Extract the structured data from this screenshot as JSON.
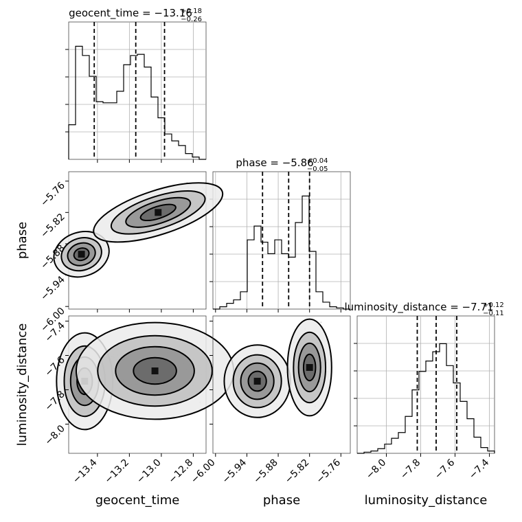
{
  "chart_data": {
    "type": "corner",
    "parameters": [
      "geocent_time",
      "phase",
      "luminosity_distance"
    ],
    "titles": [
      {
        "param": "geocent_time",
        "text": "geocent_time = −13.16",
        "plus": "+0.18",
        "minus": "−0.26"
      },
      {
        "param": "phase",
        "text": "phase = −5.86",
        "plus": "+0.04",
        "minus": "−0.05"
      },
      {
        "param": "luminosity_distance",
        "text": "luminosity_distance = −7.71",
        "plus": "+0.12",
        "minus": "−0.11"
      }
    ],
    "axes": {
      "geocent_time": {
        "range": [
          -13.58,
          -12.72
        ],
        "ticks": [
          -13.4,
          -13.2,
          -13.0,
          -12.8
        ],
        "tick_labels": [
          "−13.4",
          "−13.2",
          "−13.0",
          "−12.8"
        ]
      },
      "phase": {
        "range": [
          -6.005,
          -5.742
        ],
        "ticks": [
          -6.0,
          -5.94,
          -5.88,
          -5.82,
          -5.76
        ],
        "tick_labels": [
          "−6.00",
          "−5.94",
          "−5.88",
          "−5.82",
          "−5.76"
        ]
      },
      "luminosity_distance": {
        "range": [
          -8.17,
          -7.37
        ],
        "ticks": [
          -8.0,
          -7.8,
          -7.6,
          -7.4
        ],
        "tick_labels": [
          "−8.0",
          "−7.8",
          "−7.6",
          "−7.4"
        ]
      }
    },
    "quantiles": {
      "geocent_time": [
        -13.42,
        -13.16,
        -12.98
      ],
      "phase": [
        -5.91,
        -5.86,
        -5.82
      ],
      "luminosity_distance": [
        -7.82,
        -7.71,
        -7.59
      ]
    },
    "histograms": {
      "geocent_time": {
        "edges_range": [
          -13.58,
          -12.72
        ],
        "counts": [
          0.3,
          0.98,
          0.9,
          0.72,
          0.5,
          0.49,
          0.49,
          0.59,
          0.82,
          0.9,
          0.91,
          0.8,
          0.54,
          0.36,
          0.22,
          0.16,
          0.12,
          0.05,
          0.02,
          0.0
        ]
      },
      "phase": {
        "edges_range": [
          -6.005,
          -5.742
        ],
        "counts": [
          0.0,
          0.02,
          0.05,
          0.08,
          0.15,
          0.6,
          0.72,
          0.58,
          0.48,
          0.6,
          0.48,
          0.45,
          0.75,
          0.98,
          0.5,
          0.15,
          0.06,
          0.02,
          0.01,
          0.0
        ]
      },
      "luminosity_distance": {
        "edges_range": [
          -8.17,
          -7.37
        ],
        "counts": [
          0.0,
          0.01,
          0.02,
          0.04,
          0.08,
          0.13,
          0.18,
          0.32,
          0.55,
          0.71,
          0.8,
          0.88,
          0.95,
          0.76,
          0.61,
          0.45,
          0.3,
          0.14,
          0.05,
          0.02
        ]
      }
    },
    "density_modes": [
      {
        "x": "geocent_time",
        "y": "phase",
        "modes": [
          [
            -13.5,
            -5.9
          ],
          [
            -13.02,
            -5.82
          ]
        ]
      },
      {
        "x": "geocent_time",
        "y": "luminosity_distance",
        "modes": [
          [
            -13.48,
            -7.75
          ],
          [
            -13.04,
            -7.69
          ]
        ]
      },
      {
        "x": "phase",
        "y": "luminosity_distance",
        "modes": [
          [
            -5.92,
            -7.75
          ],
          [
            -5.82,
            -7.67
          ]
        ]
      }
    ],
    "xlabels": [
      "geocent_time",
      "phase",
      "luminosity_distance"
    ],
    "ylabels": [
      "phase",
      "luminosity_distance"
    ],
    "grid": true
  }
}
